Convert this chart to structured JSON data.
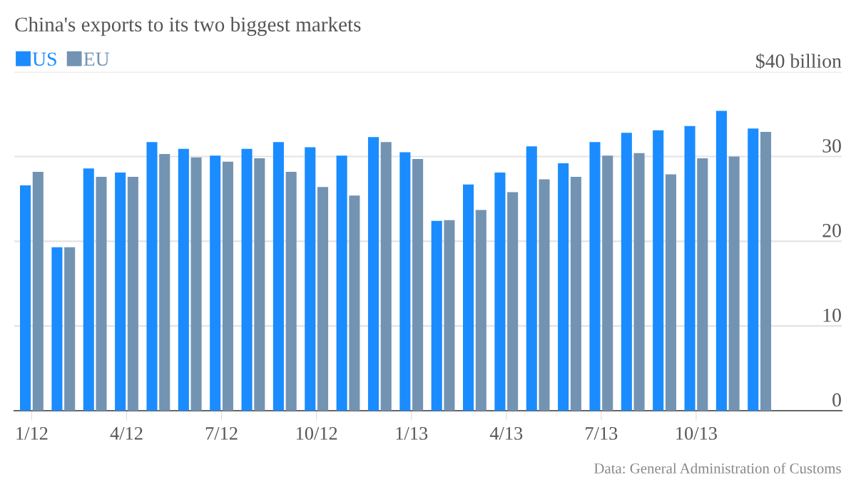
{
  "chart_data": {
    "type": "bar",
    "title": "China's exports to its two biggest markets",
    "categories": [
      "1/12",
      null,
      null,
      "4/12",
      null,
      null,
      "7/12",
      null,
      null,
      "10/12",
      null,
      null,
      "1/13",
      null,
      null,
      "4/13",
      null,
      null,
      "7/13",
      null,
      null,
      "10/13",
      null,
      null
    ],
    "series": [
      {
        "name": "US",
        "color": "#1a8cff",
        "values": [
          26.6,
          19.3,
          28.6,
          28.1,
          31.7,
          30.9,
          30.1,
          30.9,
          31.7,
          31.1,
          30.1,
          32.3,
          30.5,
          22.4,
          26.7,
          28.1,
          31.2,
          29.2,
          31.7,
          32.8,
          33.1,
          33.6,
          35.4,
          33.3
        ]
      },
      {
        "name": "EU",
        "color": "#7393b3",
        "values": [
          28.2,
          19.3,
          27.6,
          27.6,
          30.3,
          29.9,
          29.4,
          29.8,
          28.2,
          26.4,
          25.4,
          31.7,
          29.7,
          22.5,
          23.7,
          25.8,
          27.3,
          27.6,
          30.1,
          30.4,
          27.9,
          29.8,
          30.0,
          32.9
        ]
      }
    ],
    "ylim": [
      0,
      40
    ],
    "yticks": [
      0,
      10,
      20,
      30,
      {
        "value": 40,
        "label": "$40 billion"
      }
    ],
    "grid": "y",
    "legend": "top left",
    "annotations": [
      "Data: General Administration of Customs"
    ]
  }
}
